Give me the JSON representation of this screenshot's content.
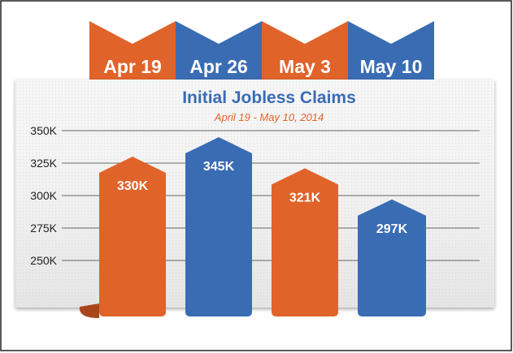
{
  "chart_data": {
    "type": "bar",
    "title": "Initial Jobless Claims",
    "subtitle": "April 19 - May 10, 2014",
    "categories": [
      "Apr 19",
      "Apr 26",
      "May 3",
      "May 10"
    ],
    "values": [
      330000,
      345000,
      321000,
      297000
    ],
    "value_labels": [
      "330K",
      "345K",
      "321K",
      "297K"
    ],
    "y_ticks": [
      250000,
      275000,
      300000,
      325000,
      350000
    ],
    "y_tick_labels": [
      "250K",
      "275K",
      "300K",
      "325K",
      "350K"
    ],
    "ylim": [
      225000,
      350000
    ],
    "grid": true,
    "colors": {
      "orange": "#e0632a",
      "blue": "#3a6cb4",
      "title": "#3a6cb4",
      "subtitle": "#e0632a"
    }
  }
}
